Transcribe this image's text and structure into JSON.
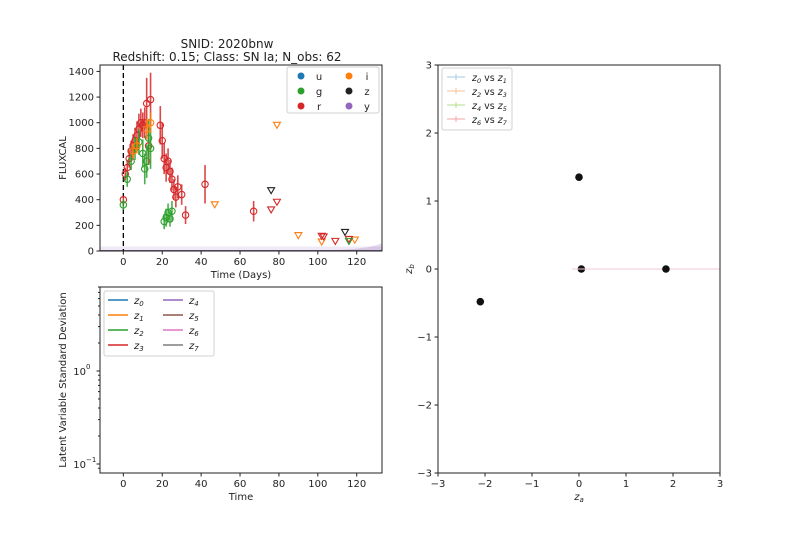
{
  "chart_data": [
    {
      "id": "lightcurve",
      "type": "scatter",
      "title": "SNID: 2020bnw",
      "subtitle": "Redshift: 0.15; Class: SN Ia; N_obs: 62",
      "xlabel": "Time (Days)",
      "ylabel": "FLUXCAL",
      "xlim": [
        -12,
        133
      ],
      "ylim": [
        0,
        1450
      ],
      "xticks": [
        0,
        20,
        40,
        60,
        80,
        100,
        120
      ],
      "yticks": [
        0,
        200,
        400,
        600,
        800,
        1000,
        1200,
        1400
      ],
      "vline_x": 0,
      "legend": {
        "position": "upper right",
        "ncol": 2,
        "entries": [
          {
            "label": "u",
            "color": "#1f77b4"
          },
          {
            "label": "i",
            "color": "#ff7f0e"
          },
          {
            "label": "g",
            "color": "#2ca02c"
          },
          {
            "label": "z",
            "color": "#222222"
          },
          {
            "label": "r",
            "color": "#d62728"
          },
          {
            "label": "y",
            "color": "#9467bd"
          }
        ]
      },
      "series": [
        {
          "name": "r",
          "color": "#d62728",
          "marker": "circle",
          "points": [
            [
              0,
              400,
              30
            ],
            [
              1,
              600,
              50
            ],
            [
              2,
              650,
              60
            ],
            [
              3,
              720,
              70
            ],
            [
              4,
              780,
              80
            ],
            [
              5,
              820,
              90
            ],
            [
              6,
              860,
              100
            ],
            [
              7,
              900,
              110
            ],
            [
              8,
              950,
              120
            ],
            [
              9,
              1000,
              110
            ],
            [
              10,
              980,
              100
            ],
            [
              11,
              1000,
              120
            ],
            [
              12,
              1150,
              200
            ],
            [
              13,
              820,
              150
            ],
            [
              14,
              1180,
              210
            ],
            [
              19,
              980,
              150
            ],
            [
              20,
              860,
              140
            ],
            [
              21,
              720,
              120
            ],
            [
              22,
              650,
              110
            ],
            [
              23,
              700,
              100
            ],
            [
              24,
              620,
              90
            ],
            [
              25,
              560,
              90
            ],
            [
              26,
              480,
              80
            ],
            [
              27,
              420,
              80
            ],
            [
              28,
              500,
              90
            ],
            [
              30,
              440,
              80
            ],
            [
              32,
              280,
              70
            ],
            [
              42,
              520,
              150
            ],
            [
              67,
              310,
              80
            ]
          ]
        },
        {
          "name": "g",
          "color": "#2ca02c",
          "marker": "circle",
          "points": [
            [
              0,
              360,
              40
            ],
            [
              2,
              560,
              60
            ],
            [
              4,
              700,
              70
            ],
            [
              6,
              800,
              90
            ],
            [
              8,
              850,
              100
            ],
            [
              10,
              760,
              110
            ],
            [
              11,
              640,
              120
            ],
            [
              12,
              700,
              130
            ],
            [
              13,
              880,
              150
            ],
            [
              14,
              800,
              160
            ],
            [
              21,
              230,
              60
            ],
            [
              22,
              260,
              70
            ],
            [
              23,
              300,
              70
            ],
            [
              24,
              250,
              60
            ],
            [
              25,
              310,
              80
            ]
          ]
        },
        {
          "name": "i",
          "color": "#ff7f0e",
          "marker": "circle",
          "points": [
            [
              5,
              780,
              60
            ],
            [
              7,
              820,
              60
            ],
            [
              12,
              950,
              80
            ],
            [
              14,
              1000,
              80
            ]
          ]
        }
      ],
      "upper_limits": [
        {
          "band": "i",
          "color": "#ff7f0e",
          "points": [
            [
              47,
              360
            ],
            [
              79,
              980
            ],
            [
              90,
              120
            ],
            [
              102,
              70
            ],
            [
              119,
              85
            ]
          ]
        },
        {
          "band": "z",
          "color": "#222222",
          "points": [
            [
              76,
              470
            ],
            [
              114,
              145
            ]
          ]
        },
        {
          "band": "r",
          "color": "#d62728",
          "points": [
            [
              76,
              320
            ],
            [
              79,
              380
            ],
            [
              102,
              115
            ],
            [
              103,
              110
            ],
            [
              109,
              75
            ],
            [
              116,
              90
            ]
          ]
        },
        {
          "band": "g",
          "color": "#2ca02c",
          "points": [
            [
              116,
              75
            ]
          ]
        }
      ],
      "model_band": {
        "color": "#9467bd",
        "description": "faint purple model band near zero flux"
      }
    },
    {
      "id": "latent-std",
      "type": "line",
      "title": "",
      "xlabel": "Time",
      "ylabel": "Latent Variable Standard Deviation",
      "yscale": "log",
      "xlim": [
        -12,
        133
      ],
      "ylim": [
        0.08,
        8
      ],
      "xticks": [
        0,
        20,
        40,
        60,
        80,
        100,
        120
      ],
      "yticks": [
        "10^-1",
        "10^0"
      ],
      "legend": {
        "position": "upper left",
        "ncol": 2,
        "entries": [
          {
            "label": "z0",
            "color": "#1f77b4"
          },
          {
            "label": "z4",
            "color": "#9467bd"
          },
          {
            "label": "z1",
            "color": "#ff7f0e"
          },
          {
            "label": "z5",
            "color": "#8c564b"
          },
          {
            "label": "z2",
            "color": "#2ca02c"
          },
          {
            "label": "z6",
            "color": "#e377c2"
          },
          {
            "label": "z3",
            "color": "#d62728"
          },
          {
            "label": "z7",
            "color": "#7f7f7f"
          }
        ]
      },
      "series": []
    },
    {
      "id": "latent-pairs",
      "type": "scatter",
      "title": "",
      "xlabel": "z_a",
      "ylabel": "z_b",
      "xlim": [
        -3,
        3
      ],
      "ylim": [
        -3,
        3
      ],
      "xticks": [
        -3,
        -2,
        -1,
        0,
        1,
        2,
        3
      ],
      "yticks": [
        -3,
        -2,
        -1,
        0,
        1,
        2,
        3
      ],
      "legend": {
        "position": "upper left",
        "entries": [
          {
            "label": "z0 vs z1",
            "color": "#a6cee3"
          },
          {
            "label": "z2 vs z3",
            "color": "#fdbf8f"
          },
          {
            "label": "z4 vs z5",
            "color": "#b2df8a"
          },
          {
            "label": "z6 vs z7",
            "color": "#f4a6a6"
          }
        ]
      },
      "series": [
        {
          "name": "z0 vs z1",
          "points": [
            [
              0.0,
              1.35
            ]
          ]
        },
        {
          "name": "z2 vs z3",
          "points": [
            [
              0.05,
              0.0
            ]
          ]
        },
        {
          "name": "z4 vs z5",
          "points": [
            [
              -2.1,
              -0.48
            ]
          ]
        },
        {
          "name": "z6 vs z7",
          "points": [
            [
              1.85,
              0.0
            ]
          ],
          "xerr": 2.0
        }
      ]
    }
  ]
}
